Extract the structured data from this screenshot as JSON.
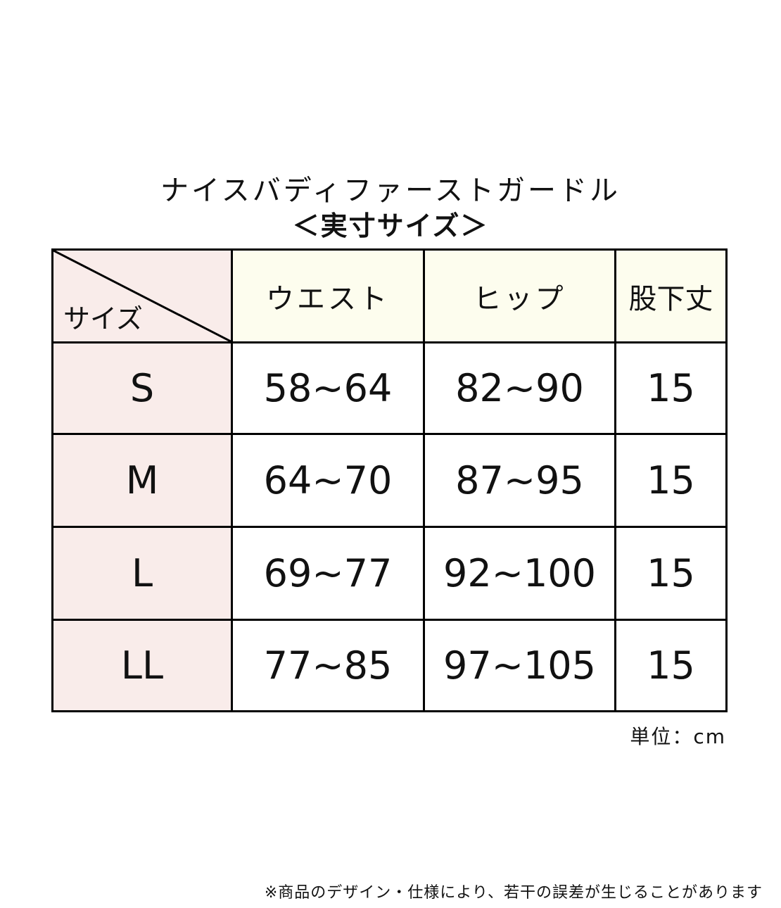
{
  "title": "ナイスバディファーストガードル",
  "subtitle": "＜実寸サイズ＞",
  "table": {
    "corner_label": "サイズ",
    "headers": [
      "ウエスト",
      "ヒップ",
      "股下丈"
    ],
    "rows": [
      {
        "size": "S",
        "waist": "58~64",
        "hip": "82~90",
        "inseam": "15"
      },
      {
        "size": "M",
        "waist": "64~70",
        "hip": "87~95",
        "inseam": "15"
      },
      {
        "size": "L",
        "waist": "69~77",
        "hip": "92~100",
        "inseam": "15"
      },
      {
        "size": "LL",
        "waist": "77~85",
        "hip": "97~105",
        "inseam": "15"
      }
    ]
  },
  "unit": "単位：cm",
  "note": "※商品のデザイン・仕様により、若干の誤差が生じることがあります",
  "colors": {
    "size_column": "#f9ecea",
    "header_row": "#fdfdee",
    "border": "#000000"
  }
}
